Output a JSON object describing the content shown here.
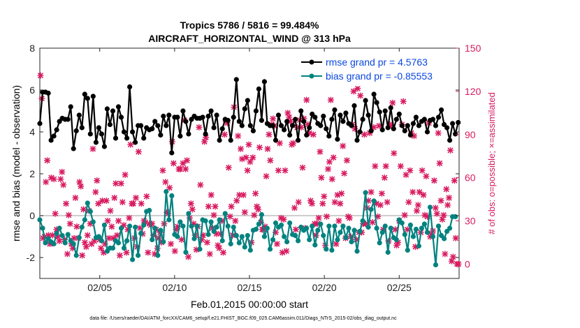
{
  "chart_data": {
    "type": "line",
    "title": "Tropics 5786 / 5816 = 99.484%",
    "subtitle": "AIRCRAFT_HORIZONTAL_WIND @ 313 hPa",
    "xlabel": "Feb.01,2015 00:00:00 start",
    "ylabel": "rmse and bias (model - observation)",
    "y2label": "# of obs: o=possible; ×=assimilated",
    "footnote": "data file: /Users/raeder/DAI/ATM_forcXX/CAM6_setup/f.e21.FHIST_BGC.f09_025.CAM6assim.011/Diags_NTrS_2015-02/obs_diag_output.nc",
    "xlim": [
      1.0,
      29.0
    ],
    "ylim": [
      -3,
      8
    ],
    "y2lim": [
      -10,
      150
    ],
    "xticks": [
      5,
      10,
      15,
      20,
      25
    ],
    "xticklabels": [
      "02/05",
      "02/10",
      "02/15",
      "02/20",
      "02/25"
    ],
    "yticks": [
      -2,
      0,
      2,
      4,
      6,
      8
    ],
    "y2ticks": [
      0,
      30,
      60,
      90,
      120,
      150
    ],
    "colors": {
      "rmse": "#000000",
      "bias": "#00827f",
      "obs": "#d81b60",
      "zero": "#bdbdbd"
    },
    "series": [
      {
        "name": "rmse grand pr = 4.5763",
        "values": [
          4.4,
          5.9,
          5.9,
          5.85,
          3.6,
          3.8,
          4.1,
          4.5,
          4.65,
          4.6,
          4.6,
          5.2,
          3.2,
          4.05,
          4.8,
          4.2,
          5.8,
          5.6,
          3.9,
          5.7,
          3.5,
          4.2,
          3.9,
          3.3,
          5.1,
          4.35,
          5.0,
          3.7,
          5.2,
          4.7,
          4.0,
          3.7,
          6.15,
          4.0,
          3.5,
          4.3,
          4.3,
          3.7,
          4.2,
          4.1,
          4.15,
          4.5,
          4.3,
          3.85,
          4.75,
          4.3,
          4.8,
          3.0,
          4.7,
          4.7,
          3.8,
          5.0,
          4.5,
          3.9,
          4.6,
          4.75,
          4.65,
          4.65,
          4.7,
          3.9,
          4.75,
          5.0,
          4.2,
          4.8,
          3.6,
          4.15,
          4.6,
          4.55,
          3.6,
          4.7,
          6.5,
          4.5,
          4.3,
          5.1,
          5.5,
          4.3,
          4.05,
          5.0,
          6.05,
          4.55,
          6.4,
          4.4,
          4.3,
          4.3,
          3.6,
          4.8,
          4.3,
          4.1,
          4.5,
          3.85,
          4.3,
          4.6,
          3.6,
          5.0,
          4.5,
          3.85,
          4.2,
          4.85,
          4.7,
          4.4,
          4.3,
          4.75,
          4.15,
          3.8,
          4.6,
          5.05,
          3.65,
          4.8,
          4.5,
          4.9,
          4.4,
          4.3,
          5.25,
          3.6,
          4.0,
          4.6,
          5.5,
          4.8,
          4.05,
          5.8,
          5.4,
          4.95,
          4.1,
          5.0,
          4.2,
          5.15,
          4.15,
          4.6,
          4.85,
          4.3,
          4.05,
          4.3,
          3.85,
          4.4,
          4.7,
          4.3,
          4.5,
          4.6,
          4.0,
          4.55,
          4.6,
          4.3,
          4.7,
          5.05,
          4.35,
          4.2,
          3.6,
          4.4,
          3.9,
          4.45
        ],
        "x_start": 1.0,
        "x_step": 0.1875
      },
      {
        "name": "bias grand pr = -0.85553",
        "values": [
          -0.2,
          -0.6,
          -1.3,
          -1.1,
          -1.25,
          -1.35,
          -0.85,
          -0.6,
          -0.95,
          -1.3,
          -0.9,
          -1.2,
          -1.35,
          -1.9,
          -1.05,
          -0.55,
          -0.2,
          0.6,
          0.2,
          -0.3,
          -1.05,
          -1.0,
          -1.2,
          -0.45,
          -1.7,
          -1.55,
          -1.55,
          -1.2,
          -1.3,
          -0.6,
          -1.55,
          -1.2,
          -0.5,
          -2.1,
          -0.55,
          -1.9,
          -0.85,
          -0.45,
          0.2,
          0.25,
          -1.15,
          -0.6,
          -1.9,
          -0.7,
          -1.25,
          1.15,
          -0.2,
          0.95,
          -0.9,
          -1.0,
          -0.3,
          -0.5,
          -1.75,
          0.1,
          -0.5,
          -1.1,
          -0.5,
          -1.6,
          -0.2,
          -0.25,
          -0.9,
          -0.3,
          -0.75,
          -0.55,
          -0.2,
          -1.2,
          0.1,
          -0.5,
          -1.35,
          -0.55,
          -0.95,
          -1.3,
          -1.0,
          -1.5,
          -0.95,
          -1.65,
          -0.7,
          -0.65,
          -0.4,
          0.05,
          -1.0,
          -0.6,
          -1.6,
          -1.15,
          -0.35,
          -0.55,
          -0.45,
          -1.0,
          -1.25,
          -0.35,
          -0.9,
          -0.95,
          -1.2,
          -0.55,
          -0.7,
          -0.6,
          -1.15,
          -0.5,
          -1.4,
          -0.7,
          -0.4,
          -0.95,
          -1.6,
          -0.5,
          -1.65,
          -0.5,
          -1.15,
          -0.8,
          -0.5,
          -1.05,
          -0.6,
          -1.25,
          -0.7,
          -1.7,
          -0.75,
          -0.25,
          1.1,
          -0.55,
          0.3,
          0.7,
          -0.6,
          -1.3,
          -0.8,
          -0.5,
          -1.75,
          -0.6,
          -1.05,
          -1.15,
          -0.2,
          -0.35,
          -0.9,
          -1.65,
          -0.45,
          -1.0,
          -0.65,
          -1.45,
          -0.6,
          -0.4,
          -0.8,
          0.4,
          -1.0,
          -2.35,
          -0.5,
          -0.95,
          -1.1,
          -0.75,
          -0.6,
          -0.05,
          -0.05
        ],
        "x_start": 1.0,
        "x_step": 0.1875
      }
    ],
    "obs_counts": {
      "values": [
        131,
        115,
        18,
        19,
        57,
        72,
        20,
        14,
        60,
        20,
        59,
        35,
        24,
        19,
        16,
        59,
        64,
        55,
        17,
        42,
        7,
        34,
        28,
        14,
        11,
        18,
        46,
        26,
        18,
        57,
        54,
        6,
        38,
        15,
        12,
        20,
        37,
        28,
        14,
        80,
        16,
        50,
        58,
        42,
        17,
        11,
        44,
        8,
        14,
        44,
        30,
        18,
        37,
        26,
        18,
        46,
        56,
        20,
        30,
        6,
        56,
        43,
        27,
        62,
        8,
        24,
        32,
        83,
        42,
        42,
        18,
        46,
        12,
        78,
        25,
        42,
        21,
        30,
        29,
        47,
        8,
        28,
        27,
        28,
        20,
        7,
        24,
        11,
        18,
        22,
        15,
        65,
        28,
        57,
        36,
        35,
        53,
        14,
        85,
        70,
        9,
        24,
        26,
        66,
        66,
        17,
        70,
        100,
        66,
        72,
        5,
        32,
        42,
        38,
        28,
        20,
        10,
        26,
        95,
        55,
        17,
        20,
        85,
        88,
        15,
        40,
        7,
        48,
        25,
        34,
        40,
        21,
        13,
        11,
        21,
        30,
        8,
        90,
        99,
        98,
        67,
        33,
        40,
        20,
        109,
        30,
        44,
        89,
        48,
        80,
        73,
        48,
        36,
        74,
        65,
        83,
        71,
        15,
        74,
        34,
        49,
        40,
        38,
        81,
        29,
        24,
        24,
        26,
        61,
        80,
        90,
        72,
        97,
        101,
        96,
        22,
        14,
        65,
        84,
        32,
        8,
        31,
        65,
        9,
        105,
        102,
        99,
        83,
        84,
        39,
        24,
        95,
        43,
        100,
        95,
        67,
        101,
        25,
        114,
        97,
        91,
        44,
        42,
        90,
        28,
        20,
        28,
        32,
        78,
        60,
        42,
        47,
        13,
        33,
        66,
        71,
        114,
        59,
        74,
        43,
        14,
        48,
        30,
        42,
        49,
        82,
        63,
        18,
        72,
        33,
        32,
        19,
        97,
        120,
        94,
        17,
        122,
        22,
        117,
        22,
        28,
        90,
        28,
        39,
        44,
        91,
        50,
        29,
        95,
        68,
        42,
        33,
        96,
        41,
        49,
        24,
        60,
        68,
        43,
        16,
        97,
        96,
        112,
        77,
        24,
        13,
        15,
        30,
        68,
        97,
        113,
        34,
        62,
        24,
        43,
        65,
        91,
        50,
        89,
        12,
        37,
        41,
        50,
        22,
        65,
        48,
        34,
        61,
        33,
        98,
        19,
        21,
        23,
        58,
        39,
        35,
        91,
        70,
        44,
        31,
        34,
        7,
        52,
        41,
        46,
        79,
        2,
        5,
        58,
        18,
        0,
        0
      ],
      "note": "approximate scattered counts (0-150) across the period; markers plotted on right axis"
    }
  }
}
